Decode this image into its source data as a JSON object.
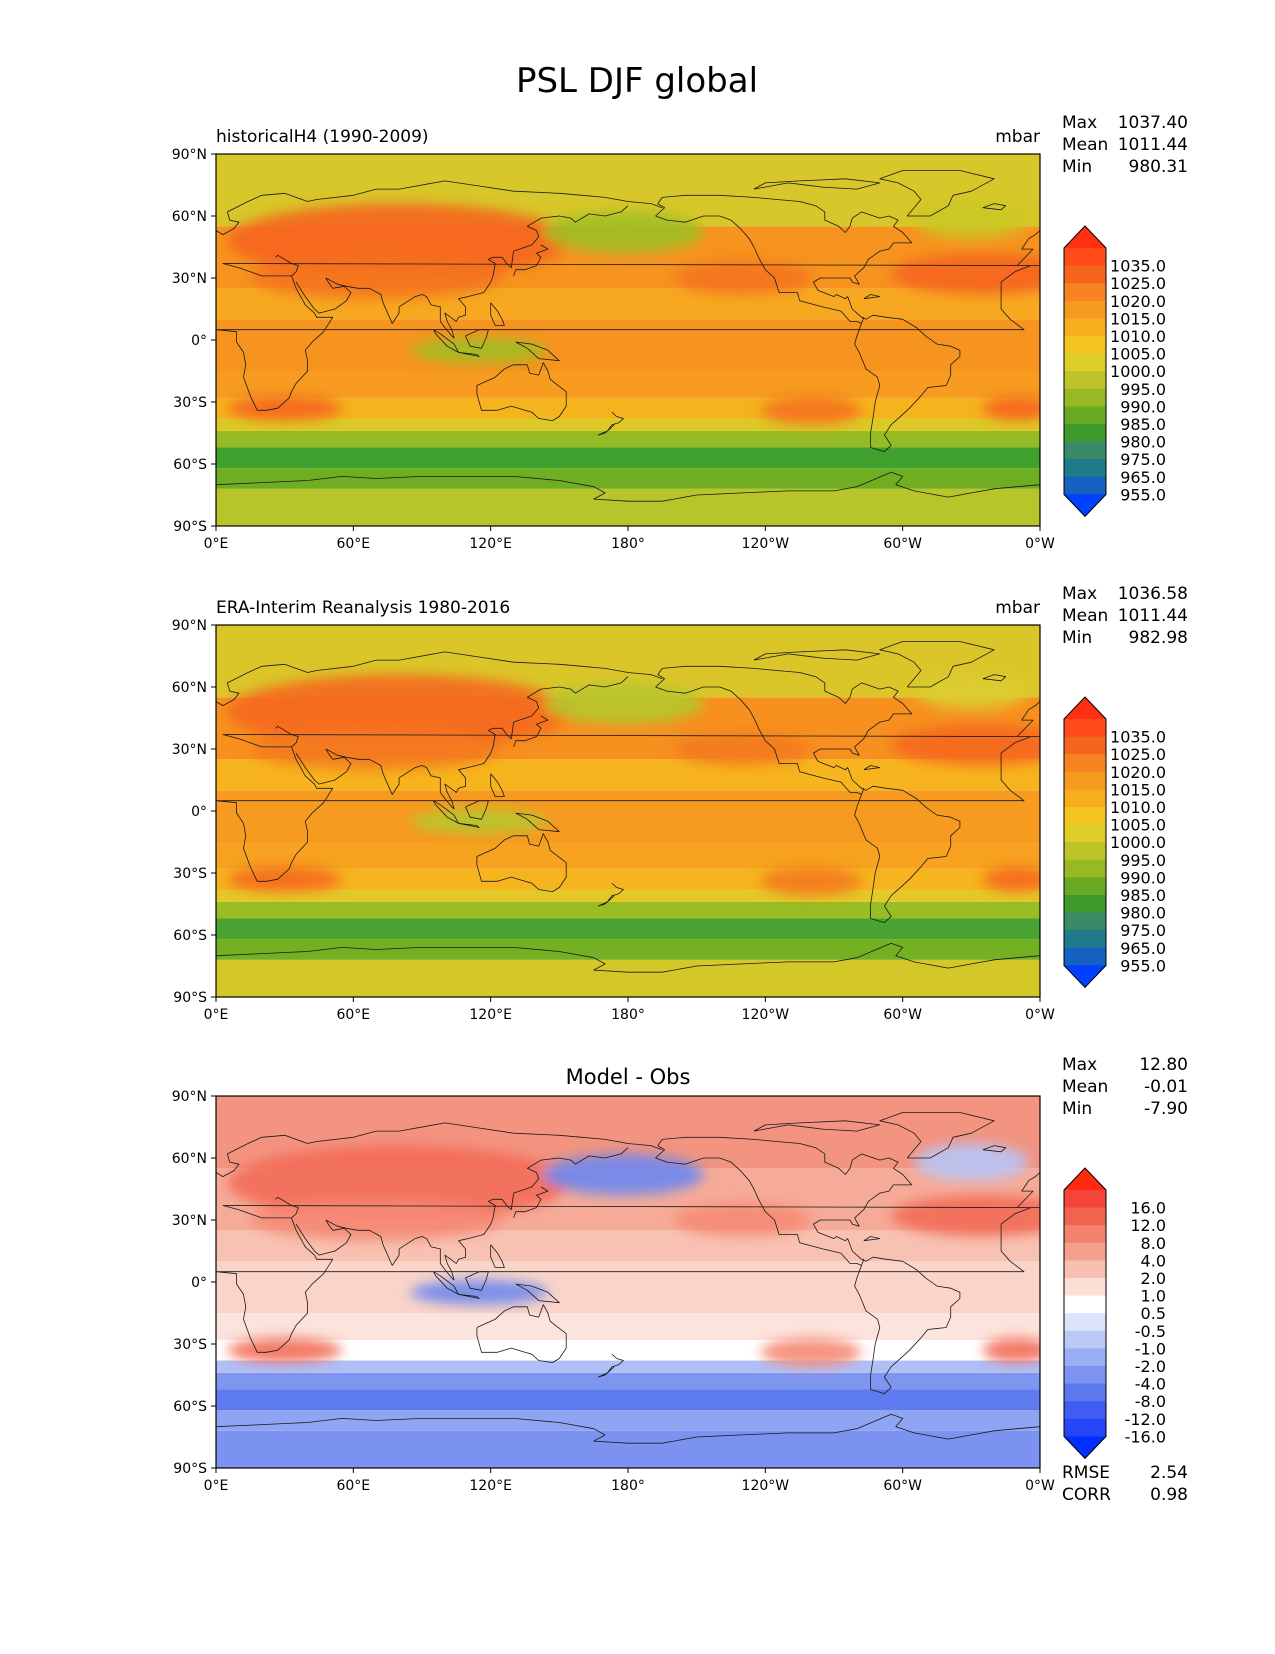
{
  "title": "PSL DJF global",
  "lat_ticks": [
    "90°N",
    "60°N",
    "30°N",
    "0°",
    "30°S",
    "60°S",
    "90°S"
  ],
  "lon_ticks": [
    "0°E",
    "60°E",
    "120°E",
    "180°",
    "120°W",
    "60°W",
    "0°W"
  ],
  "panels": [
    {
      "name": "model",
      "title_left": "historicalH4 (1990-2009)",
      "title_center": "",
      "units": "mbar",
      "stats": [
        [
          "Max",
          "1037.40"
        ],
        [
          "Mean",
          "1011.44"
        ],
        [
          "Min",
          "980.31"
        ]
      ],
      "colorbar": {
        "labels": [
          "1035.0",
          "1025.0",
          "1020.0",
          "1015.0",
          "1010.0",
          "1005.0",
          "1000.0",
          "995.0",
          "990.0",
          "985.0",
          "980.0",
          "975.0",
          "965.0",
          "955.0"
        ],
        "colors": [
          "#ff3010",
          "#ff4a1a",
          "#f5651e",
          "#f78322",
          "#f79a20",
          "#f7ae1d",
          "#f4c41e",
          "#dccd28",
          "#bdc42a",
          "#97ba24",
          "#6aaa22",
          "#3f9a2e",
          "#3a8a6a",
          "#1f7a8a",
          "#1560c0",
          "#0040ff"
        ]
      },
      "extra_stats": []
    },
    {
      "name": "obs",
      "title_left": "ERA-Interim Reanalysis 1980-2016",
      "title_center": "",
      "units": "mbar",
      "stats": [
        [
          "Max",
          "1036.58"
        ],
        [
          "Mean",
          "1011.44"
        ],
        [
          "Min",
          "982.98"
        ]
      ],
      "colorbar": {
        "labels": [
          "1035.0",
          "1025.0",
          "1020.0",
          "1015.0",
          "1010.0",
          "1005.0",
          "1000.0",
          "995.0",
          "990.0",
          "985.0",
          "980.0",
          "975.0",
          "965.0",
          "955.0"
        ],
        "colors": [
          "#ff3010",
          "#ff4a1a",
          "#f5651e",
          "#f78322",
          "#f79a20",
          "#f7ae1d",
          "#f4c41e",
          "#dccd28",
          "#bdc42a",
          "#97ba24",
          "#6aaa22",
          "#3f9a2e",
          "#3a8a6a",
          "#1f7a8a",
          "#1560c0",
          "#0040ff"
        ]
      },
      "extra_stats": []
    },
    {
      "name": "diff",
      "title_left": "",
      "title_center": "Model - Obs",
      "units": "",
      "stats": [
        [
          "Max",
          "12.80"
        ],
        [
          "Mean",
          "-0.01"
        ],
        [
          "Min",
          "-7.90"
        ]
      ],
      "colorbar": {
        "labels": [
          "16.0",
          "12.0",
          "8.0",
          "4.0",
          "2.0",
          "1.0",
          "0.5",
          "-0.5",
          "-1.0",
          "-2.0",
          "-4.0",
          "-8.0",
          "-12.0",
          "-16.0"
        ],
        "colors": [
          "#ff2a10",
          "#f5453a",
          "#f26450",
          "#f3826e",
          "#f5a08e",
          "#f8c0b0",
          "#fce0d8",
          "#ffffff",
          "#dde3fb",
          "#bcc8f8",
          "#9aaef4",
          "#7c93f0",
          "#5b78ef",
          "#3f5df2",
          "#2446f7",
          "#0030ff"
        ]
      },
      "extra_stats": [
        [
          "RMSE",
          "2.54"
        ],
        [
          "CORR",
          "0.98"
        ]
      ]
    }
  ],
  "map_palette": {
    "model": {
      "bands": [
        "#b7c52a",
        "#6fae22",
        "#40a02e",
        "#96bb24",
        "#dcc927",
        "#f5b31d",
        "#f79c20",
        "#f7931f",
        "#f7a820",
        "#f7931f",
        "#d8c72a"
      ],
      "highs": [
        "#f5651e",
        "#f4731f"
      ],
      "lows": [
        "#9fbf25",
        "#c9c826"
      ]
    },
    "obs": {
      "bands": [
        "#d4c829",
        "#73b024",
        "#4aa232",
        "#98bd25",
        "#e4c828",
        "#f6b41e",
        "#f7a220",
        "#f79a20",
        "#f7b41e",
        "#f7901f",
        "#dbc62a"
      ],
      "highs": [
        "#f5681e",
        "#f37a20"
      ],
      "lows": [
        "#b6c72b",
        "#dccc30"
      ]
    },
    "diff": {
      "bands": [
        "#7b92f0",
        "#8fa4f2",
        "#5d7aef",
        "#7f96f0",
        "#b0c0f6",
        "#ffffff",
        "#fbe4dc",
        "#fad4c8",
        "#f8c2b2",
        "#f6ab98",
        "#f39480"
      ],
      "highs": [
        "#f26c58",
        "#f58a74"
      ],
      "lows": [
        "#6d87ef",
        "#b7c5f7"
      ]
    }
  }
}
